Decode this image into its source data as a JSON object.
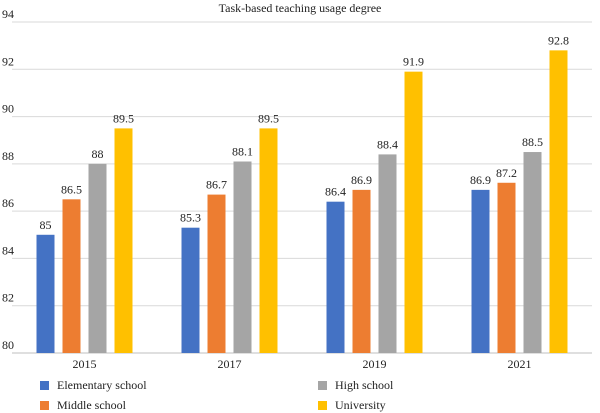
{
  "chart_data": {
    "type": "bar",
    "title": "Task-based teaching usage degree",
    "categories": [
      "2015",
      "2017",
      "2019",
      "2021"
    ],
    "series": [
      {
        "name": "Elementary school",
        "color": "#4472C4",
        "values": [
          85,
          85.3,
          86.4,
          86.9
        ]
      },
      {
        "name": "Middle school",
        "color": "#ED7D31",
        "values": [
          86.5,
          86.7,
          86.9,
          87.2
        ]
      },
      {
        "name": "High school",
        "color": "#A5A5A5",
        "values": [
          88,
          88.1,
          88.4,
          88.5
        ]
      },
      {
        "name": "University",
        "color": "#FFC000",
        "values": [
          89.5,
          89.5,
          91.9,
          92.8
        ]
      }
    ],
    "ylim": [
      80,
      94
    ],
    "yticks": [
      "80",
      "82",
      "84",
      "86",
      "88",
      "90",
      "92",
      "94"
    ],
    "data_labels": [
      [
        "85",
        "85.3",
        "86.4",
        "86.9"
      ],
      [
        "86.5",
        "86.7",
        "86.9",
        "87.2"
      ],
      [
        "88",
        "88.1",
        "88.4",
        "88.5"
      ],
      [
        "89.5",
        "89.5",
        "91.9",
        "92.8"
      ]
    ],
    "grid": true,
    "legend_position": "bottom",
    "gridline_color": "#D9D9D9",
    "axis_color": "#BFBFBF"
  }
}
